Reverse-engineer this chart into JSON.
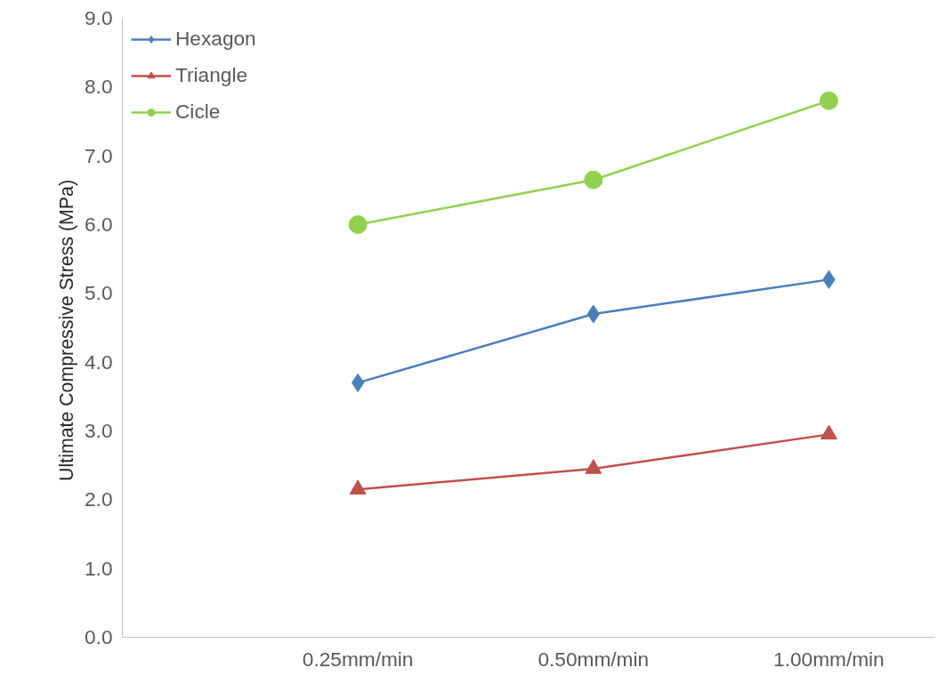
{
  "chart_data": {
    "type": "line",
    "ylabel": "Ultimate Compressive  Stress (MPa)",
    "categories": [
      null,
      "0.25mm/min",
      "0.50mm/min",
      "1.00mm/min"
    ],
    "series": [
      {
        "name": "Hexagon",
        "color": "#4a7ebb",
        "marker": "diamond",
        "values": [
          null,
          3.7,
          4.7,
          5.2
        ]
      },
      {
        "name": "Triangle",
        "color": "#c0504d",
        "marker": "triangle",
        "values": [
          null,
          2.15,
          2.45,
          2.95
        ]
      },
      {
        "name": "Cicle",
        "color": "#92d050",
        "marker": "circle",
        "values": [
          null,
          6.0,
          6.65,
          7.8
        ]
      }
    ],
    "ylim": [
      0,
      9
    ],
    "yticks": [
      {
        "value": 0,
        "label": "0.0"
      },
      {
        "value": 1,
        "label": "1.0"
      },
      {
        "value": 2,
        "label": "2.0"
      },
      {
        "value": 3,
        "label": "3.0"
      },
      {
        "value": 4,
        "label": "4.0"
      },
      {
        "value": 5,
        "label": "5.0"
      },
      {
        "value": 6,
        "label": "6.0"
      },
      {
        "value": 7,
        "label": "7.0"
      },
      {
        "value": 8,
        "label": "8.0"
      },
      {
        "value": 9,
        "label": "9.0"
      }
    ],
    "grid": false,
    "legend": "top left",
    "line_style": "solid"
  }
}
